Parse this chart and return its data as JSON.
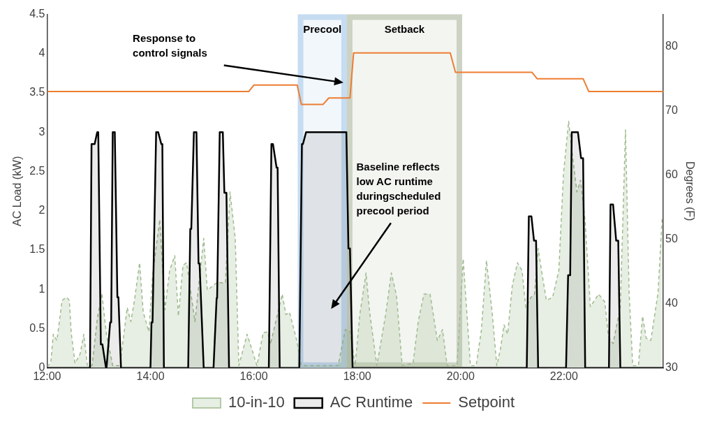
{
  "chart_data": {
    "type": "area",
    "xlim": [
      12,
      23.92
    ],
    "xticks": [
      {
        "value": 12,
        "label": "12:00"
      },
      {
        "value": 14,
        "label": "14:00"
      },
      {
        "value": 16,
        "label": "16:00"
      },
      {
        "value": 18,
        "label": "18:00"
      },
      {
        "value": 20,
        "label": "20:00"
      },
      {
        "value": 22,
        "label": "22:00"
      }
    ],
    "ylabel": "AC Load (kW)",
    "y2label": "Degrees (F)",
    "ylim": [
      0,
      4.5
    ],
    "yticks": [
      0,
      0.5,
      1,
      1.5,
      2,
      2.5,
      3,
      3.5,
      4,
      4.5
    ],
    "y2lim": [
      30,
      85
    ],
    "y2ticks": [
      30,
      40,
      50,
      60,
      70,
      80
    ],
    "grid": false,
    "legend": "bottom",
    "marker": "none",
    "series": [
      {
        "name": "10-in-10",
        "color": "#9fbb8f",
        "line_style": "dashed",
        "x": [
          12,
          12.07,
          12.12,
          12.19,
          12.29,
          12.38,
          12.43,
          12.47,
          12.54,
          12.64,
          12.71,
          12.78,
          12.87,
          12.97,
          13.06,
          13.15,
          13.27,
          13.41,
          13.55,
          13.62,
          13.69,
          13.79,
          13.86,
          13.97,
          14.04,
          14.18,
          14.28,
          14.37,
          14.47,
          14.54,
          14.63,
          14.7,
          14.86,
          15.03,
          15.1,
          15.29,
          15.45,
          15.54,
          15.64,
          15.71,
          15.87,
          15.99,
          16.06,
          16.18,
          16.27,
          16.32,
          16.55,
          16.62,
          16.69,
          16.83,
          16.92,
          17.63,
          17.77,
          17.86,
          17.96,
          18.05,
          18.17,
          18.24,
          18.38,
          18.55,
          18.66,
          18.76,
          18.87,
          19.08,
          19.18,
          19.29,
          19.41,
          19.55,
          19.65,
          19.74,
          19.93,
          20.05,
          20.19,
          20.3,
          20.4,
          20.5,
          20.61,
          20.7,
          20.77,
          20.84,
          20.91,
          21,
          21.1,
          21.19,
          21.26,
          21.36,
          21.43,
          21.5,
          21.59,
          21.66,
          21.78,
          21.9,
          21.99,
          22.09,
          22.15,
          22.25,
          22.32,
          22.41,
          22.51,
          22.67,
          22.79,
          22.86,
          22.95,
          23.09,
          23.19,
          23.26,
          23.33,
          23.44,
          23.52,
          23.59,
          23.68,
          23.82,
          23.9
        ],
        "values": [
          0.02,
          0.06,
          0.43,
          0.35,
          0.86,
          0.9,
          0.86,
          0.43,
          0.06,
          0.18,
          0.43,
          0.03,
          0.03,
          0.62,
          0.95,
          0.42,
          0.03,
          0.03,
          0.77,
          0.59,
          0.86,
          1.34,
          0.71,
          0.46,
          1.17,
          1.89,
          0.74,
          1.24,
          1.43,
          0.66,
          1.31,
          1.34,
          0.59,
          1.65,
          0.99,
          1.09,
          1.08,
          2.24,
          1.65,
          0.03,
          0.43,
          0.18,
          0.03,
          0.45,
          0.46,
          0.3,
          0.94,
          0.68,
          0.71,
          0.35,
          0.03,
          0.03,
          0.49,
          0.47,
          0.03,
          0.68,
          1.21,
          0.71,
          0.03,
          0.68,
          1.21,
          0.92,
          0.03,
          0.06,
          0.59,
          0.94,
          0.94,
          0.35,
          0.49,
          0.03,
          0.03,
          1.39,
          0.03,
          0.03,
          0.47,
          1.37,
          0.71,
          0.03,
          0.24,
          0.55,
          0.43,
          1.05,
          1.34,
          1.24,
          0.77,
          0.9,
          0.94,
          1.52,
          1.14,
          0.86,
          0.9,
          1.24,
          2.47,
          3.14,
          2.78,
          2.24,
          2.39,
          1.86,
          0.78,
          0.94,
          0.84,
          0.4,
          0.31,
          0.78,
          3.03,
          0.96,
          0.03,
          0.03,
          0.66,
          0.38,
          0.35,
          0.96,
          1.92
        ]
      },
      {
        "name": "AC Runtime",
        "color": "#000000",
        "x": [
          12,
          12.83,
          12.86,
          12.92,
          12.97,
          12.99,
          13.04,
          13.07,
          13.14,
          13.15,
          13.22,
          13.24,
          13.27,
          13.31,
          13.36,
          13.38,
          13.43,
          14,
          14.02,
          14.04,
          14.11,
          14.15,
          14.21,
          14.23,
          14.26,
          14.73,
          14.77,
          14.79,
          14.84,
          14.89,
          14.93,
          14.95,
          15.03,
          15.22,
          15.28,
          15.29,
          15.34,
          15.4,
          15.43,
          15.47,
          15.52,
          16.29,
          16.34,
          16.37,
          16.44,
          16.46,
          16.5,
          16.88,
          16.93,
          16.95,
          17.01,
          17.79,
          17.83,
          17.86,
          17.91,
          21.28,
          21.32,
          21.37,
          21.42,
          21.46,
          21.5,
          22.04,
          22.08,
          22.12,
          22.15,
          22.27,
          22.33,
          22.37,
          22.41,
          22.87,
          22.9,
          22.95,
          23.01,
          23.05,
          23.09,
          23.92
        ],
        "values": [
          0,
          0,
          2.85,
          2.85,
          3,
          3,
          0.3,
          0.3,
          0,
          0,
          0.58,
          0.58,
          3,
          3,
          0.9,
          0.9,
          0,
          0,
          0.58,
          0.58,
          3,
          3,
          2.85,
          2.85,
          0,
          0,
          1.77,
          1.77,
          3,
          3,
          1.33,
          1.33,
          0,
          0,
          0.89,
          0.89,
          3,
          3,
          2.23,
          2.23,
          0,
          0,
          2.85,
          2.85,
          2.55,
          2.55,
          0,
          0,
          2.85,
          2.85,
          3,
          3,
          1.52,
          1.52,
          0,
          0,
          1.93,
          1.93,
          1.62,
          1.62,
          0,
          0,
          1.18,
          1.18,
          3,
          3,
          2.67,
          2.67,
          0,
          0,
          2.08,
          2.08,
          1.62,
          1.62,
          0,
          0
        ]
      },
      {
        "name": "Setpoint",
        "type": "line",
        "color": "#ed7d31",
        "axis": "y2",
        "x": [
          12,
          15.9,
          16,
          16.84,
          16.92,
          17.34,
          17.45,
          17.86,
          17.93,
          19.8,
          19.9,
          21.38,
          21.48,
          22.37,
          22.48,
          23.92
        ],
        "values": [
          73,
          73,
          74,
          74,
          71,
          71,
          72,
          72,
          79,
          79,
          76,
          76,
          75,
          75,
          73,
          73
        ]
      }
    ],
    "bands": [
      {
        "axis": "x",
        "from": 16.85,
        "to": 17.8,
        "label": "Precool",
        "color": "#bdd7ee"
      },
      {
        "axis": "x",
        "from": 17.8,
        "to": 20.03,
        "label": "Setback",
        "color": "#c5cdbb"
      }
    ],
    "annotations": [
      "Response to control signals",
      "Baseline reflects low AC runtime duringscheduled precool period"
    ]
  }
}
